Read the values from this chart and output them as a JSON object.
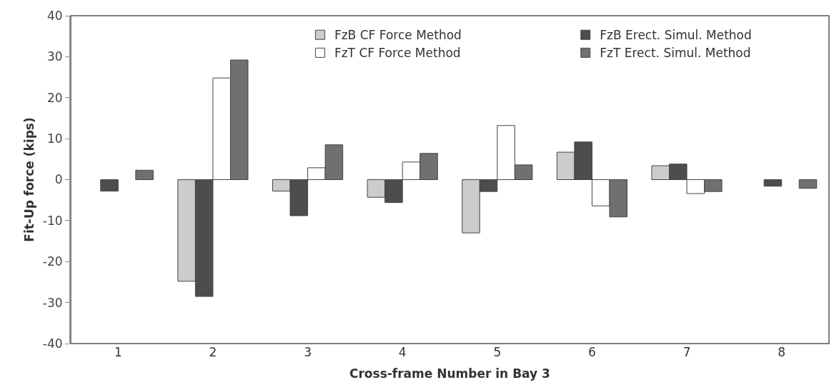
{
  "chart_data": {
    "type": "bar",
    "xlabel": "Cross-frame Number in Bay 3",
    "ylabel": "Fit-Up force (kips)",
    "categories": [
      "1",
      "2",
      "3",
      "4",
      "5",
      "6",
      "7",
      "8"
    ],
    "series": [
      {
        "name": "FzB CF Force Method",
        "color": "#cccccc",
        "values": [
          null,
          -24.8,
          -2.8,
          -4.3,
          -13.0,
          6.7,
          3.4,
          null
        ]
      },
      {
        "name": "FzB Erect. Simul. Method",
        "color": "#4d4d4d",
        "values": [
          -2.8,
          -28.5,
          -8.8,
          -5.6,
          -2.9,
          9.2,
          3.8,
          -1.6
        ]
      },
      {
        "name": "FzT CF Force Method",
        "color": "#ffffff",
        "values": [
          null,
          24.8,
          2.9,
          4.3,
          13.2,
          -6.4,
          -3.4,
          null
        ]
      },
      {
        "name": "FzT Erect. Simul. Method",
        "color": "#707070",
        "values": [
          2.3,
          29.2,
          8.5,
          6.4,
          3.6,
          -9.1,
          -2.9,
          -2.1
        ]
      }
    ],
    "ylim": [
      -40,
      40
    ],
    "yticks": [
      -40,
      -30,
      -20,
      -10,
      0,
      10,
      20,
      30,
      40
    ],
    "grid": false,
    "legend": "top right"
  }
}
